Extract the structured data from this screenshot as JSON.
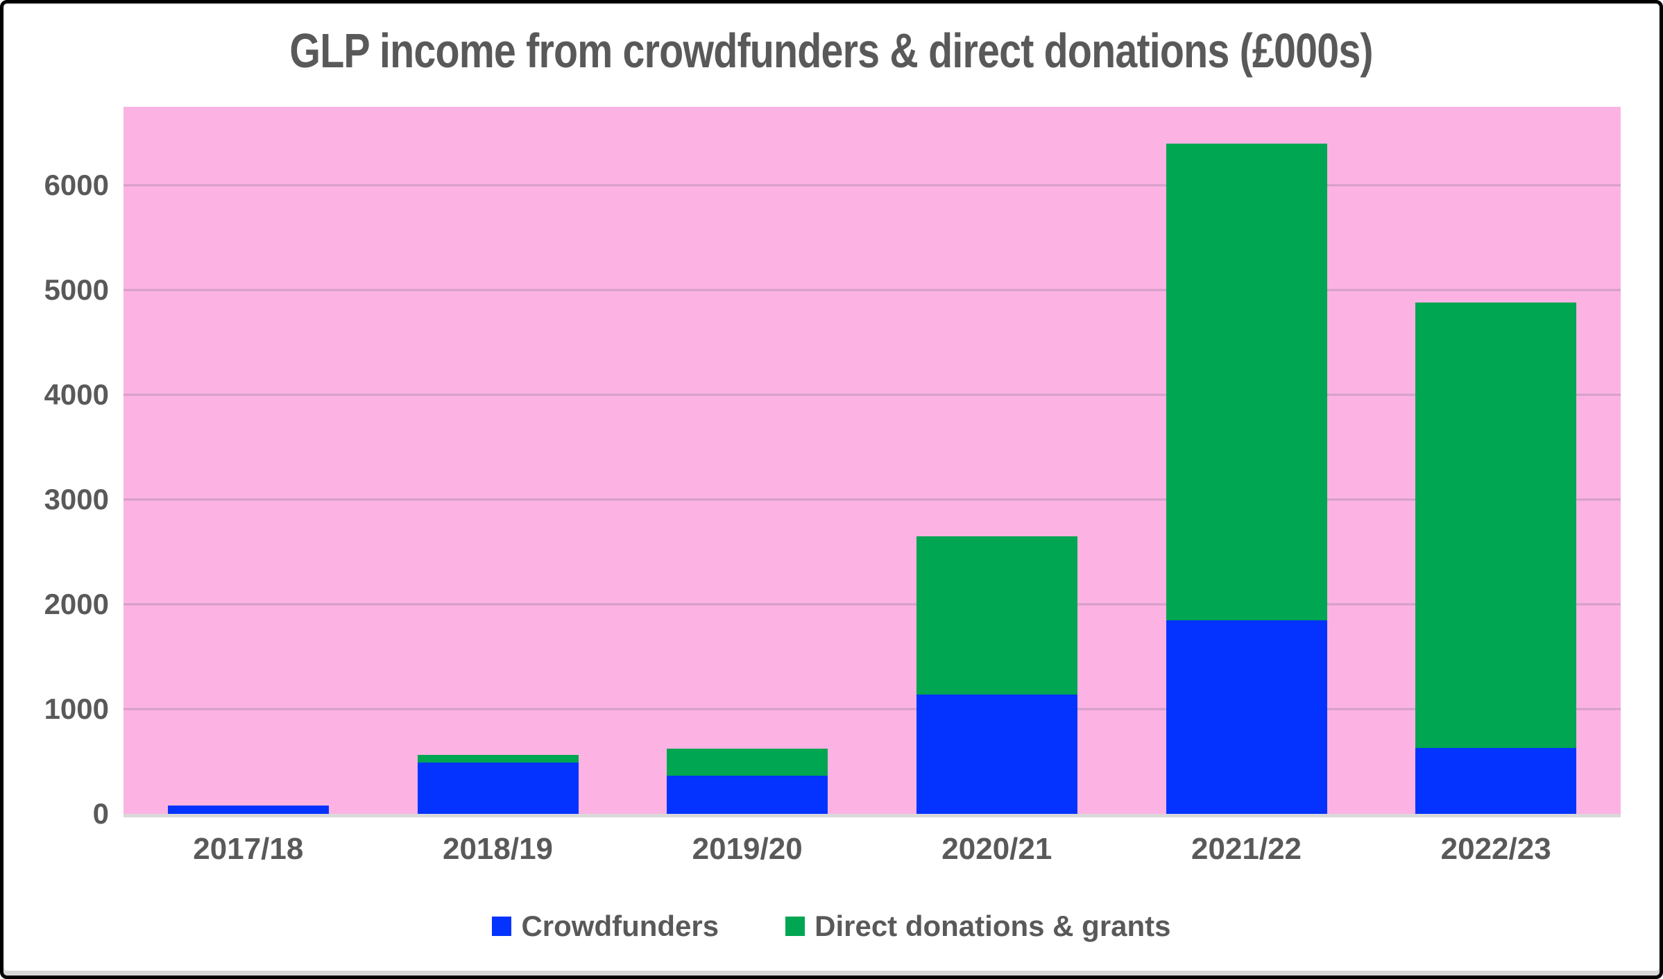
{
  "title": "GLP income from crowdfunders & direct donations (£000s)",
  "colors": {
    "plot_background_pink": "#FCB3E3",
    "gridline_mauve": "#D49FC9",
    "axis_baseline_gray": "#D9D9D9",
    "text_gray": "#595959",
    "frame_black": "#000000",
    "crowdfunders_blue": "#0433FF",
    "donations_green": "#00A651"
  },
  "chart_data": {
    "type": "bar",
    "stacked": true,
    "title": "GLP income from crowdfunders & direct donations (£000s)",
    "categories": [
      "2017/18",
      "2018/19",
      "2019/20",
      "2020/21",
      "2021/22",
      "2022/23"
    ],
    "series": [
      {
        "name": "Crowdfunders",
        "color": "#0433FF",
        "values": [
          80,
          490,
          365,
          1140,
          1850,
          630
        ]
      },
      {
        "name": "Direct donations & grants",
        "color": "#00A651",
        "values": [
          0,
          75,
          260,
          1510,
          4550,
          4250
        ]
      }
    ],
    "stacked_totals": [
      80,
      565,
      625,
      2650,
      6400,
      4880
    ],
    "xlabel": "",
    "ylabel": "",
    "ylim": [
      0,
      6750
    ],
    "yticks": [
      0,
      1000,
      2000,
      3000,
      4000,
      5000,
      6000
    ],
    "grid": true,
    "gridlines": "horizontal, every 1000",
    "legend_position": "bottom",
    "plot_bg": "#FCB3E3",
    "units": "£000s"
  },
  "legend": {
    "items": [
      {
        "label": "Crowdfunders",
        "color": "#0433FF"
      },
      {
        "label": "Direct donations & grants",
        "color": "#00A651"
      }
    ]
  }
}
